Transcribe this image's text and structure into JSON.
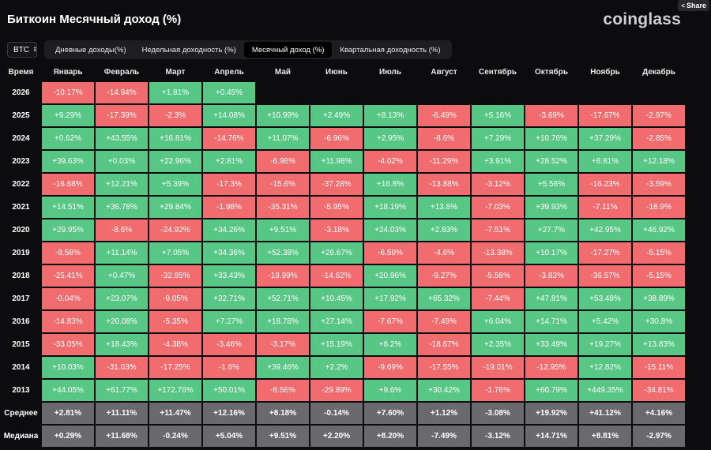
{
  "header": {
    "title": "Биткоин Месячный доход (%)",
    "logo": "coinglass",
    "share_label": "Share"
  },
  "toolbar": {
    "asset": "BTC",
    "tabs": [
      {
        "label": "Дневные доходы(%)",
        "active": false
      },
      {
        "label": "Недельная доходность (%)",
        "active": false
      },
      {
        "label": "Месячный доход (%)",
        "active": true
      },
      {
        "label": "Квартальная доходность (%)",
        "active": false
      }
    ]
  },
  "colors": {
    "positive": "#58c785",
    "negative": "#f06c6f",
    "stat": "#6a6a6e",
    "background": "#0c0c0e"
  },
  "chart_data": {
    "type": "heatmap",
    "corner_label": "Время",
    "columns": [
      "Январь",
      "Февраль",
      "Март",
      "Апрель",
      "Май",
      "Июнь",
      "Июль",
      "Август",
      "Сентябрь",
      "Октябрь",
      "Ноябрь",
      "Декабрь"
    ],
    "rows": [
      {
        "label": "2026",
        "values": [
          "-10.17%",
          "-14.94%",
          "+1.81%",
          "+0.45%",
          null,
          null,
          null,
          null,
          null,
          null,
          null,
          null
        ]
      },
      {
        "label": "2025",
        "values": [
          "+9.29%",
          "-17.39%",
          "-2.3%",
          "+14.08%",
          "+10.99%",
          "+2.49%",
          "+8.13%",
          "-6.49%",
          "+5.16%",
          "-3.69%",
          "-17.67%",
          "-2.97%"
        ]
      },
      {
        "label": "2024",
        "values": [
          "+0.62%",
          "+43.55%",
          "+16.81%",
          "-14.76%",
          "+11.07%",
          "-6.96%",
          "+2.95%",
          "-8.6%",
          "+7.29%",
          "+10.76%",
          "+37.29%",
          "-2.85%"
        ]
      },
      {
        "label": "2023",
        "values": [
          "+39.63%",
          "+0.03%",
          "+22.96%",
          "+2.81%",
          "-6.98%",
          "+11.98%",
          "-4.02%",
          "-11.29%",
          "+3.91%",
          "+28.52%",
          "+8.81%",
          "+12.18%"
        ]
      },
      {
        "label": "2022",
        "values": [
          "-16.68%",
          "+12.21%",
          "+5.39%",
          "-17.3%",
          "-15.6%",
          "-37.28%",
          "+16.8%",
          "-13.88%",
          "-3.12%",
          "+5.56%",
          "-16.23%",
          "-3.59%"
        ]
      },
      {
        "label": "2021",
        "values": [
          "+14.51%",
          "+36.78%",
          "+29.84%",
          "-1.98%",
          "-35.31%",
          "-5.95%",
          "+18.19%",
          "+13.8%",
          "-7.03%",
          "+39.93%",
          "-7.11%",
          "-18.9%"
        ]
      },
      {
        "label": "2020",
        "values": [
          "+29.95%",
          "-8.6%",
          "-24.92%",
          "+34.26%",
          "+9.51%",
          "-3.18%",
          "+24.03%",
          "+2.83%",
          "-7.51%",
          "+27.7%",
          "+42.95%",
          "+46.92%"
        ]
      },
      {
        "label": "2019",
        "values": [
          "-8.58%",
          "+11.14%",
          "+7.05%",
          "+34.36%",
          "+52.38%",
          "+26.67%",
          "-6.59%",
          "-4.6%",
          "-13.38%",
          "+10.17%",
          "-17.27%",
          "-5.15%"
        ]
      },
      {
        "label": "2018",
        "values": [
          "-25.41%",
          "+0.47%",
          "-32.85%",
          "+33.43%",
          "-18.99%",
          "-14.62%",
          "+20.96%",
          "-9.27%",
          "-5.58%",
          "-3.83%",
          "-36.57%",
          "-5.15%"
        ]
      },
      {
        "label": "2017",
        "values": [
          "-0.04%",
          "+23.07%",
          "-9.05%",
          "+32.71%",
          "+52.71%",
          "+10.45%",
          "+17.92%",
          "+65.32%",
          "-7.44%",
          "+47.81%",
          "+53.48%",
          "+38.89%"
        ]
      },
      {
        "label": "2016",
        "values": [
          "-14.83%",
          "+20.08%",
          "-5.35%",
          "+7.27%",
          "+18.78%",
          "+27.14%",
          "-7.67%",
          "-7.49%",
          "+6.04%",
          "+14.71%",
          "+5.42%",
          "+30.8%"
        ]
      },
      {
        "label": "2015",
        "values": [
          "-33.05%",
          "+18.43%",
          "-4.38%",
          "-3.46%",
          "-3.17%",
          "+15.19%",
          "+8.2%",
          "-18.67%",
          "+2.35%",
          "+33.49%",
          "+19.27%",
          "+13.83%"
        ]
      },
      {
        "label": "2014",
        "values": [
          "+10.03%",
          "-31.03%",
          "-17.25%",
          "-1.6%",
          "+39.46%",
          "+2.2%",
          "-9.69%",
          "-17.55%",
          "-19.01%",
          "-12.95%",
          "+12.82%",
          "-15.11%"
        ]
      },
      {
        "label": "2013",
        "values": [
          "+44.05%",
          "+61.77%",
          "+172.76%",
          "+50.01%",
          "-8.56%",
          "-29.89%",
          "+9.6%",
          "+30.42%",
          "-1.76%",
          "+60.79%",
          "+449.35%",
          "-34.81%"
        ]
      }
    ],
    "summary_rows": [
      {
        "label": "Среднее",
        "values": [
          "+2.81%",
          "+11.11%",
          "+11.47%",
          "+12.16%",
          "+8.18%",
          "-0.14%",
          "+7.60%",
          "+1.12%",
          "-3.08%",
          "+19.92%",
          "+41.12%",
          "+4.16%"
        ]
      },
      {
        "label": "Медиана",
        "values": [
          "+0.29%",
          "+11.68%",
          "-0.24%",
          "+5.04%",
          "+9.51%",
          "+2.20%",
          "+8.20%",
          "-7.49%",
          "-3.12%",
          "+14.71%",
          "+8.81%",
          "-2.97%"
        ]
      }
    ]
  }
}
